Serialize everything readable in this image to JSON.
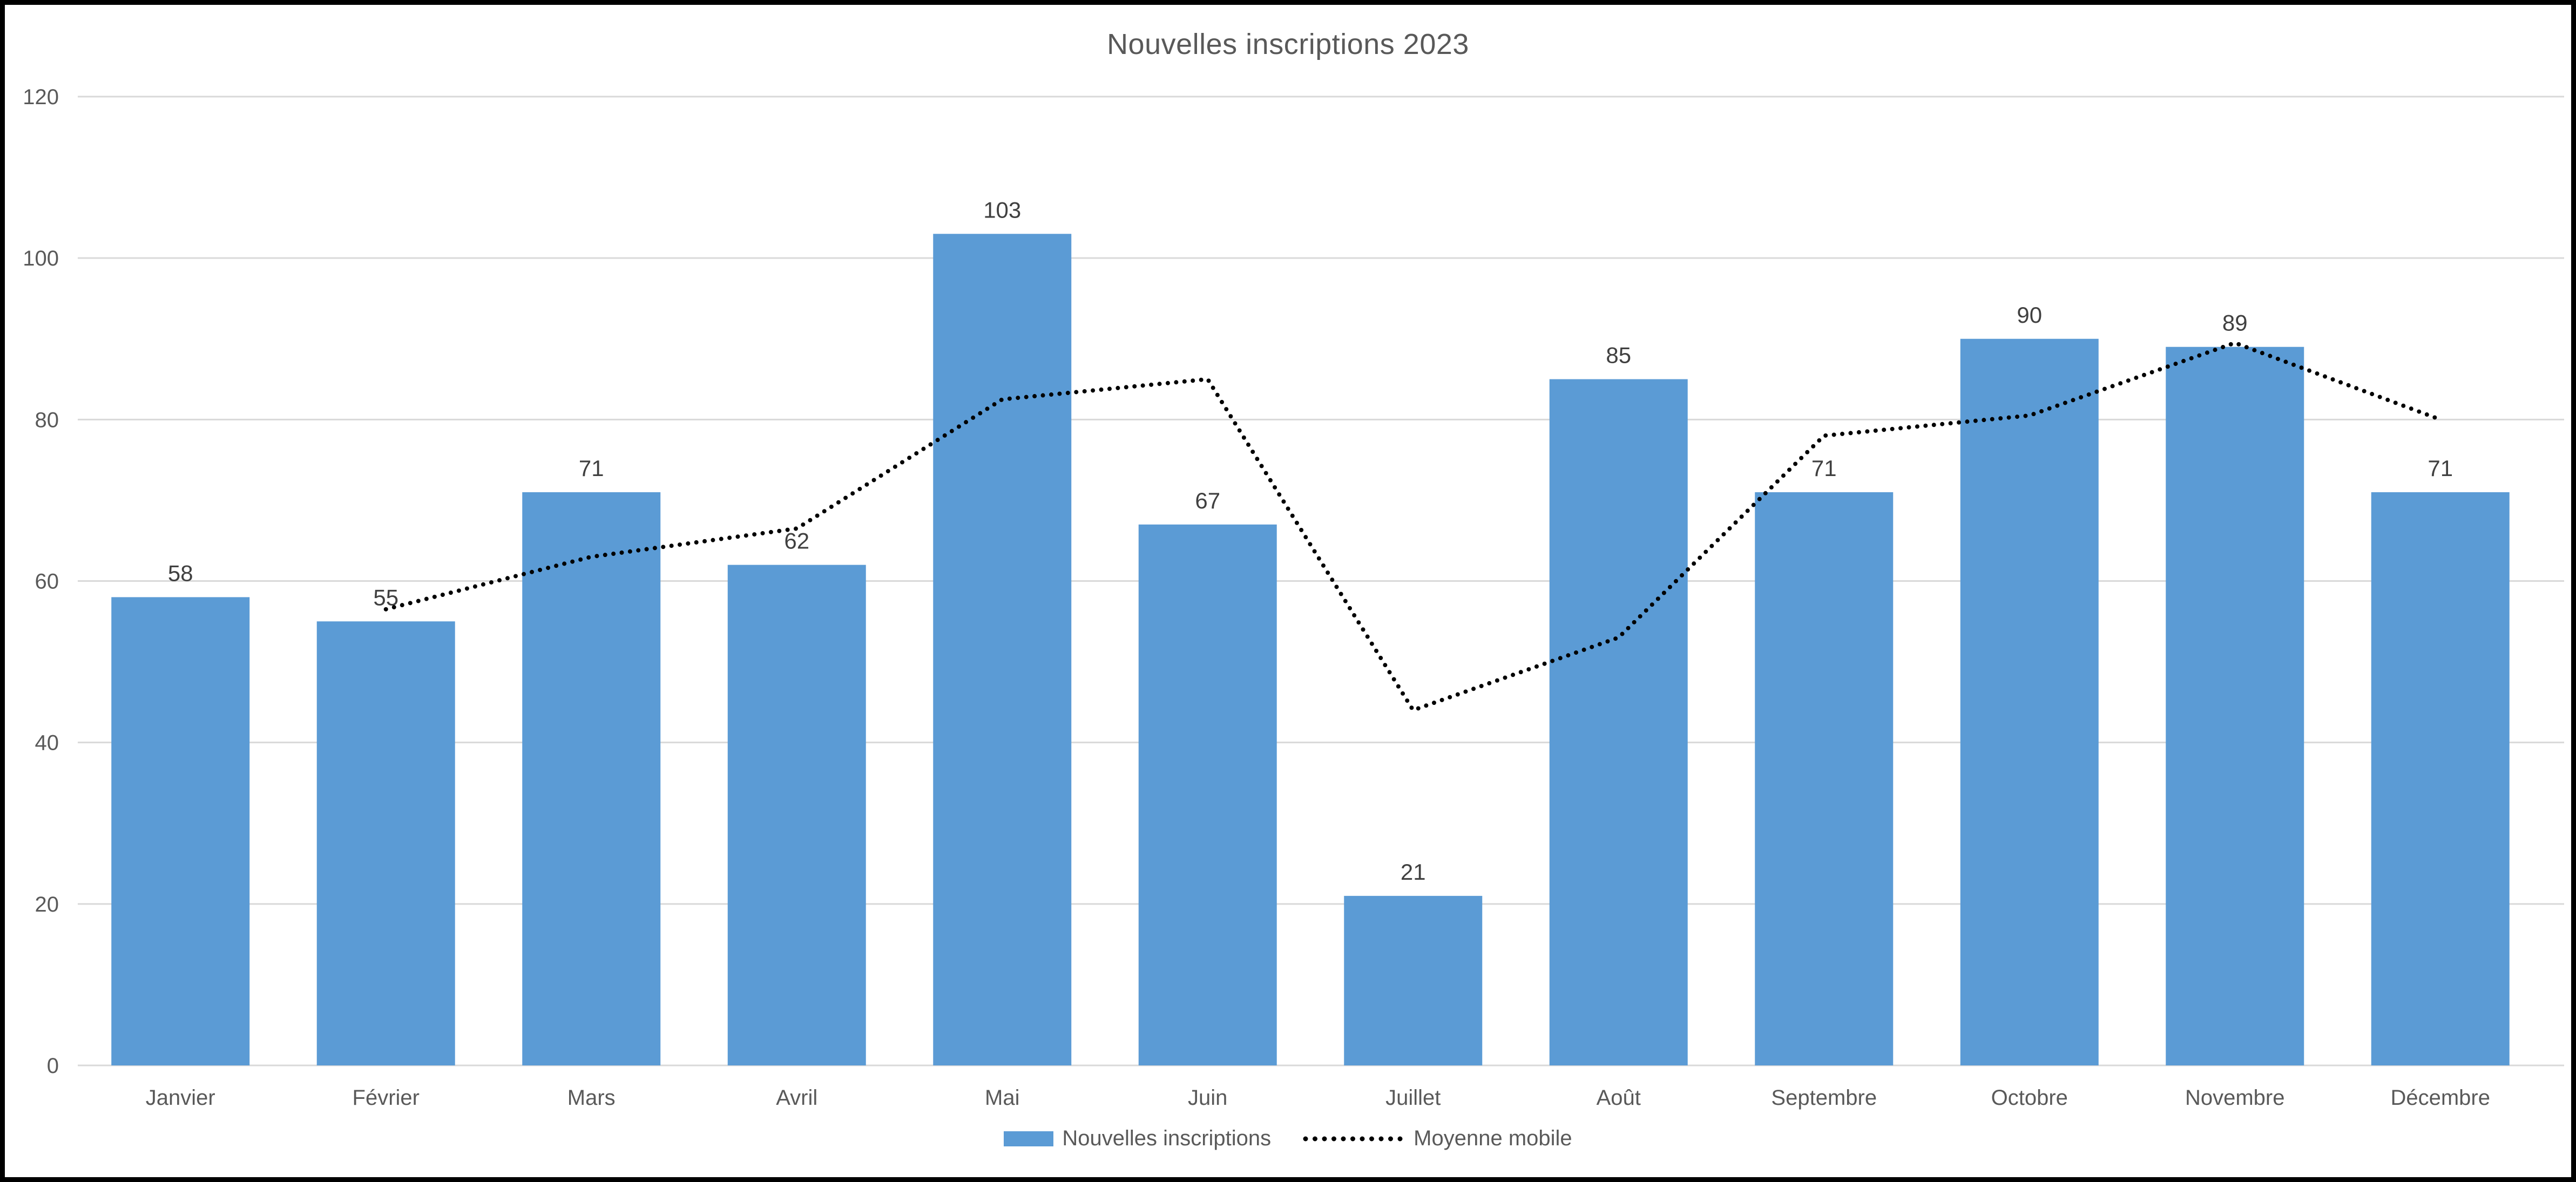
{
  "chart_data": {
    "type": "bar",
    "title": "Nouvelles inscriptions 2023",
    "categories": [
      "Janvier",
      "Février",
      "Mars",
      "Avril",
      "Mai",
      "Juin",
      "Juillet",
      "Août",
      "Septembre",
      "Octobre",
      "Novembre",
      "Décembre"
    ],
    "series": [
      {
        "name": "Nouvelles inscriptions",
        "type": "bar",
        "color": "#5B9BD5",
        "values": [
          58,
          55,
          71,
          62,
          103,
          67,
          21,
          85,
          71,
          90,
          89,
          71
        ],
        "data_labels": true
      },
      {
        "name": "Moyenne mobile",
        "type": "line",
        "style": "dotted",
        "color": "#000000",
        "values": [
          null,
          56.5,
          63,
          66.5,
          82.5,
          85,
          44,
          53,
          78,
          80.5,
          89.5,
          80
        ]
      }
    ],
    "ylim": [
      0,
      120
    ],
    "yticks": [
      0,
      20,
      40,
      60,
      80,
      100,
      120
    ],
    "grid": true,
    "legend_position": "bottom",
    "colors": {
      "grid": "#D9D9D9",
      "axis_text": "#595959",
      "data_label_text": "#404040",
      "title_text": "#595959",
      "background": "#FFFFFF",
      "frame_border": "#000000"
    }
  }
}
